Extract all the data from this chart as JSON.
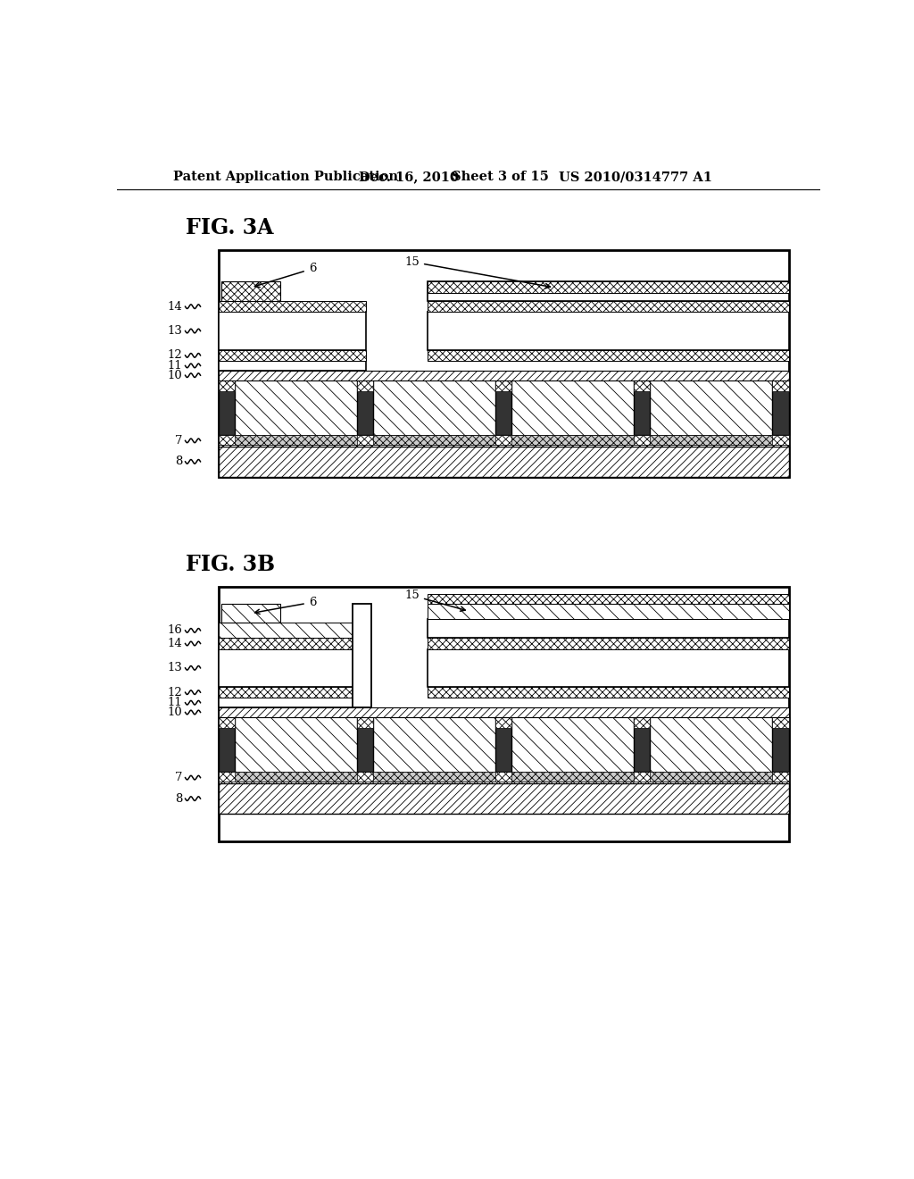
{
  "bg_color": "#ffffff",
  "header_left": "Patent Application Publication",
  "header_mid1": "Dec. 16, 2010",
  "header_mid2": "Sheet 3 of 15",
  "header_right": "US 2010/0314777 A1",
  "fig3a_label": "FIG. 3A",
  "fig3b_label": "FIG. 3B",
  "lc": "#000000",
  "dark": "#222222",
  "gray": "#aaaaaa"
}
